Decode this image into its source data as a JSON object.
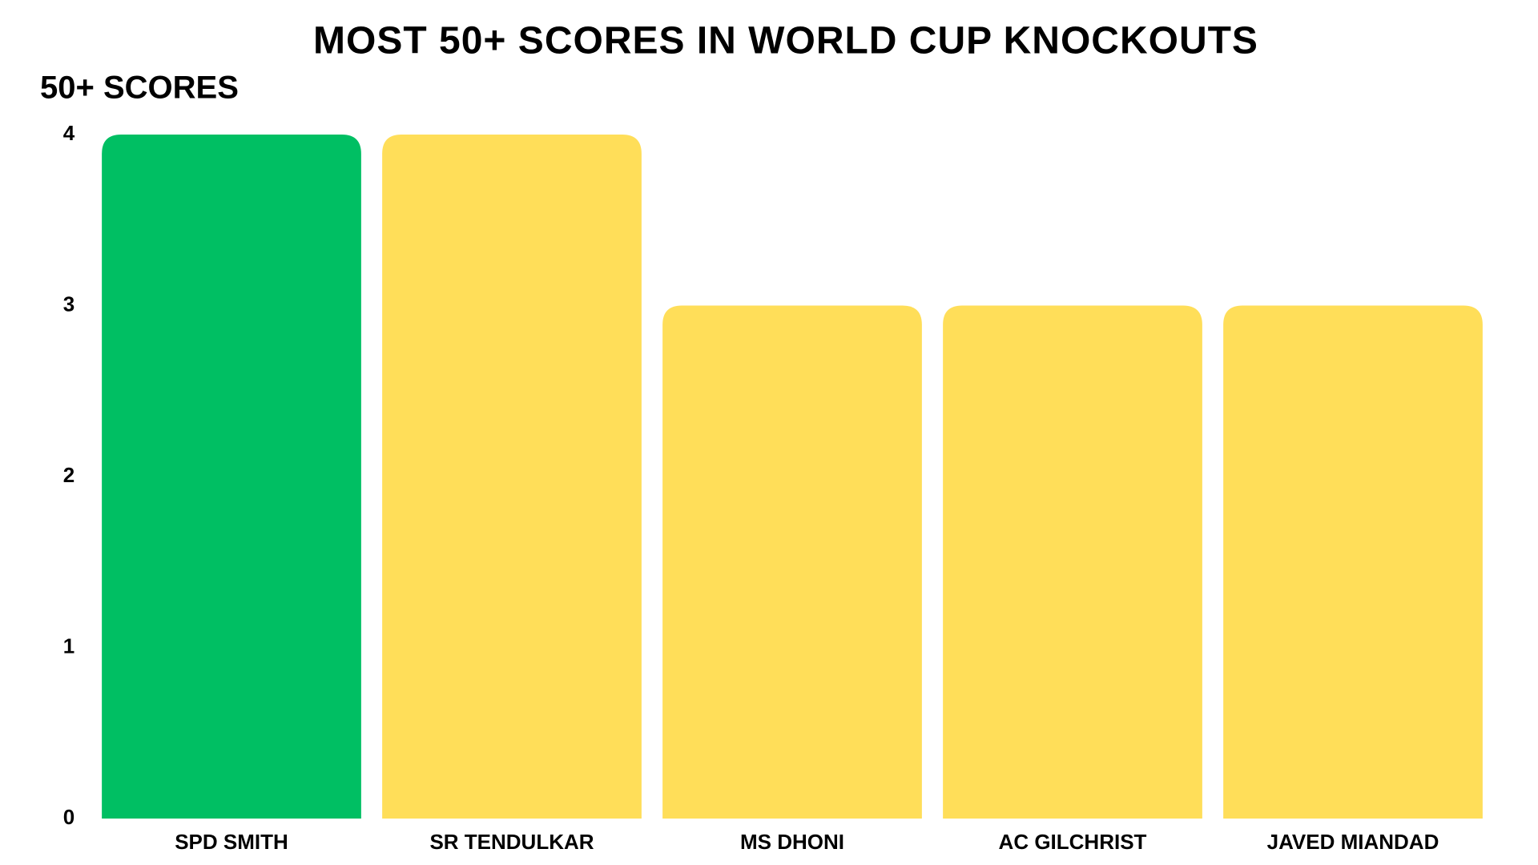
{
  "chart_data": {
    "type": "bar",
    "title": "MOST 50+ SCORES IN WORLD CUP KNOCKOUTS",
    "y_label": "50+ SCORES",
    "categories": [
      "SPD SMITH",
      "SR TENDULKAR",
      "MS DHONI",
      "AC GILCHRIST",
      "JAVED MIANDAD"
    ],
    "values": [
      4,
      4,
      3,
      3,
      3
    ],
    "colors": [
      "#00bf63",
      "#ffde59",
      "#ffde59",
      "#ffde59",
      "#ffde59"
    ],
    "ylim": [
      0,
      4
    ],
    "yticks": [
      0,
      1,
      2,
      3,
      4
    ],
    "grid": false
  }
}
